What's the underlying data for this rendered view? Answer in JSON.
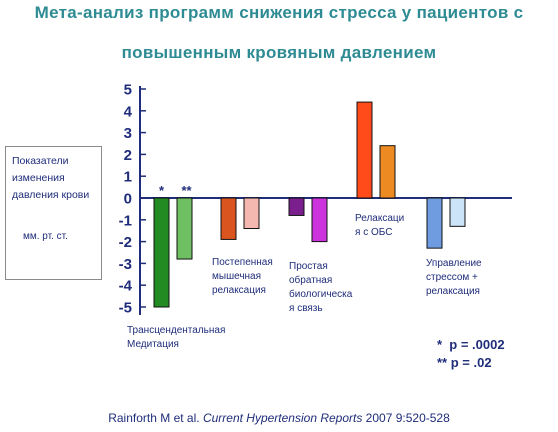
{
  "header": {
    "title_line1": "Мета-анализ  программ  снижения стресса у пациентов  с",
    "title_line2": "повышенным  кровяным  давлением"
  },
  "y_label": {
    "main": "Показатели изменения давления крови",
    "unit": "мм. рт. ст."
  },
  "significance": {
    "single": "*  p = .0002",
    "double": "** p = .02"
  },
  "citation": {
    "prefix": "Rainforth M et al. ",
    "journal": "Current Hypertension Reports",
    "suffix": " 2007 9:520-528"
  },
  "chart_data": {
    "type": "bar",
    "ylim": [
      -5,
      5
    ],
    "yticks": [
      "5",
      "4",
      "3",
      "2",
      "1",
      "0",
      "-1",
      "-2",
      "-3",
      "-4",
      "-5"
    ],
    "grid": false,
    "groups": [
      {
        "label": "Трансцендентальная Медитация",
        "label_lines": [
          "Трансцендентальная",
          "Медитация"
        ],
        "marks": [
          "*",
          "**"
        ],
        "bars": [
          {
            "value": -5.0,
            "color": "#228b22"
          },
          {
            "value": -2.8,
            "color": "#6fbf63"
          }
        ]
      },
      {
        "label": "Постепенная мышечная релаксация",
        "label_lines": [
          "Постепенная",
          "мышечная",
          "релаксация"
        ],
        "bars": [
          {
            "value": -1.9,
            "color": "#d9541e"
          },
          {
            "value": -1.4,
            "color": "#f5b8b0"
          }
        ]
      },
      {
        "label": "Простая обратная биологическая связь",
        "label_lines": [
          "Простая",
          "обратная",
          "биологическа",
          "я связь"
        ],
        "bars": [
          {
            "value": -0.8,
            "color": "#7b1f8f"
          },
          {
            "value": -2.0,
            "color": "#cc33dd"
          }
        ]
      },
      {
        "label": "Релаксация с ОБС",
        "label_lines": [
          "Релаксаци",
          "я с ОБС"
        ],
        "bars": [
          {
            "value": 4.4,
            "color": "#ff4a1a"
          },
          {
            "value": 2.4,
            "color": "#ee8a22"
          }
        ]
      },
      {
        "label": "Управление стрессом + релаксация",
        "label_lines": [
          "Управление",
          "стрессом +",
          "релаксация"
        ],
        "bars": [
          {
            "value": -2.3,
            "color": "#6f9be0"
          },
          {
            "value": -1.3,
            "color": "#cce4f7"
          }
        ]
      }
    ]
  }
}
